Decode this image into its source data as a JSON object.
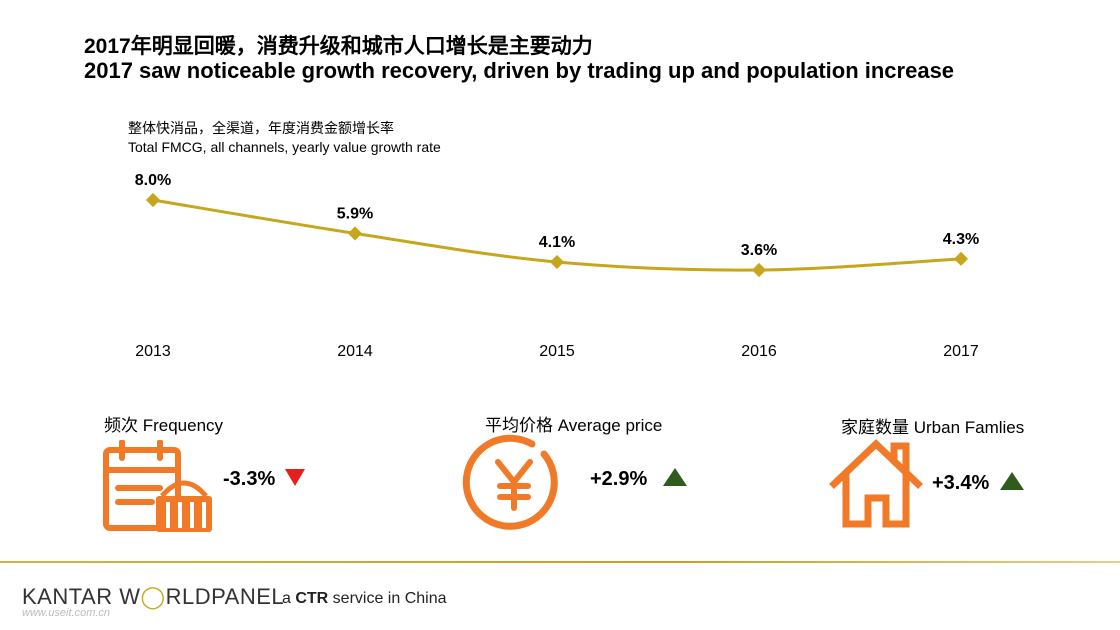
{
  "title_cn": "2017年明显回暖，消费升级和城市人口增长是主要动力",
  "title_en": "2017 saw noticeable growth recovery, driven by trading up and population increase",
  "chart_data": {
    "type": "line",
    "subtitle_cn": "整体快消品，全渠道，年度消费金额增长率",
    "subtitle_en": "Total FMCG, all channels, yearly value growth rate",
    "categories": [
      "2013",
      "2014",
      "2015",
      "2016",
      "2017"
    ],
    "values": [
      8.0,
      5.9,
      4.1,
      3.6,
      4.3
    ],
    "value_labels": [
      "8.0%",
      "5.9%",
      "4.1%",
      "3.6%",
      "4.3%"
    ],
    "series_color": "#c8a61c",
    "grid": false
  },
  "metrics": {
    "frequency": {
      "label": "频次 Frequency",
      "value": "-3.3%",
      "trend": "down",
      "trend_color": "#e3201b",
      "icon": "calendar-basket-icon"
    },
    "price": {
      "label": "平均价格  Average price",
      "value": "+2.9%",
      "trend": "up",
      "trend_color": "#2f5b1d",
      "icon": "yuan-coin-icon"
    },
    "families": {
      "label": "家庭数量 Urban Famlies",
      "value": "+3.4%",
      "trend": "up",
      "trend_color": "#2f5b1d",
      "icon": "house-icon"
    }
  },
  "icon_color": "#f07a28",
  "footer": {
    "brand_part1": "KANTAR W",
    "brand_part2": "RLDPANEL",
    "tagline_prefix": "a ",
    "tagline_bold": "CTR",
    "tagline_suffix": " service in China",
    "watermark": "www.useit.com.cn"
  }
}
